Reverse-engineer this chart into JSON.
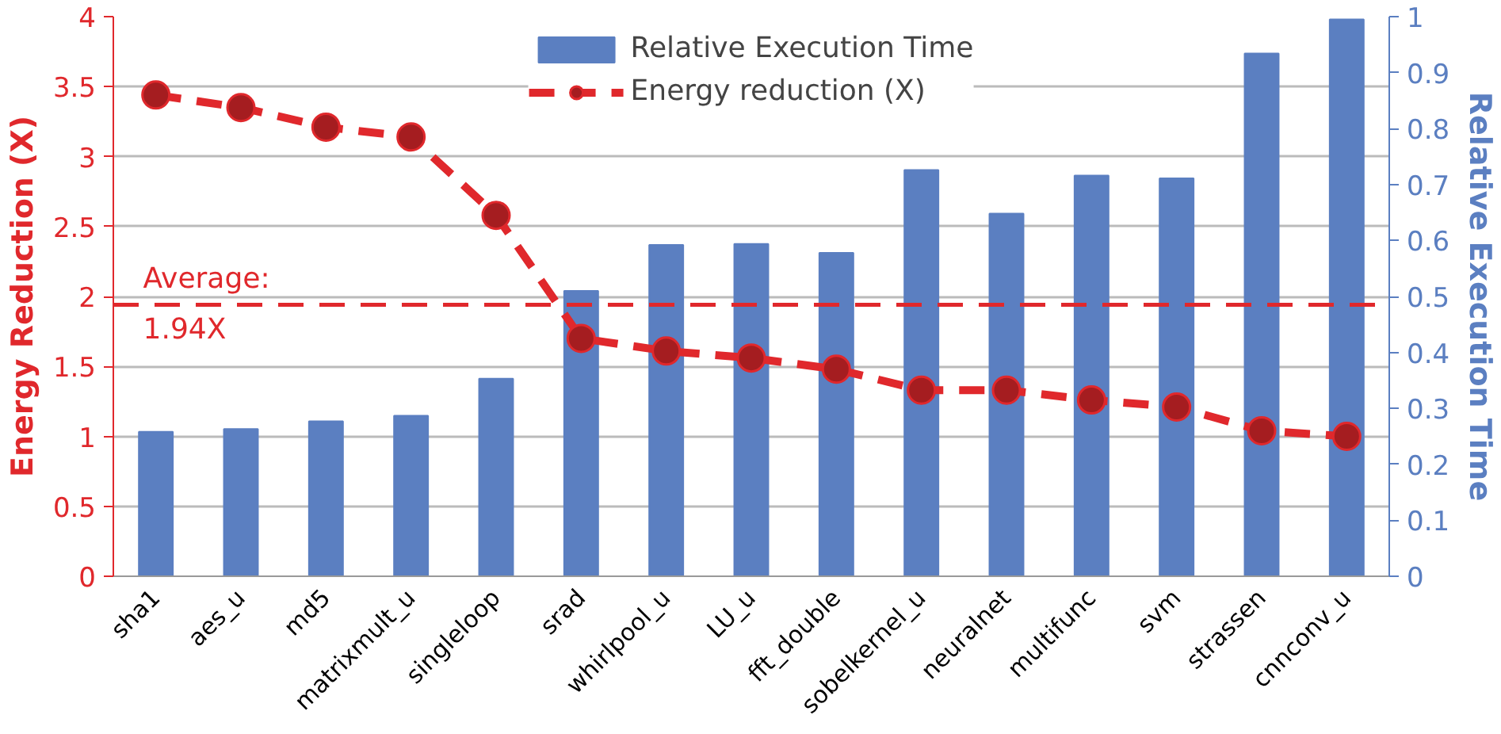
{
  "chart_data": {
    "type": "bar",
    "categories": [
      "sha1",
      "aes_u",
      "md5",
      "matrixmult_u",
      "singleloop",
      "srad",
      "whirlpool_u",
      "LU_u",
      "fft_double",
      "sobelkernel_u",
      "neuralnet",
      "multifunc",
      "svm",
      "strassen",
      "cnnconv_u"
    ],
    "series": [
      {
        "name": "Relative Execution Time",
        "axis": "y2",
        "color": "#5b7fc1",
        "values": [
          0.258,
          0.263,
          0.277,
          0.287,
          0.353,
          0.51,
          0.592,
          0.594,
          0.578,
          0.726,
          0.648,
          0.716,
          0.711,
          0.934,
          0.995
        ]
      },
      {
        "name": "Energy reduction (X)",
        "type": "line",
        "color": "#e0282c",
        "marker": "circle",
        "line_style": "dashed",
        "values": [
          3.44,
          3.35,
          3.21,
          3.14,
          2.58,
          1.7,
          1.61,
          1.56,
          1.48,
          1.33,
          1.33,
          1.26,
          1.21,
          1.04,
          1.0
        ]
      }
    ],
    "ylabel": "Energy Reduction (X)",
    "y2label": "Relative Execution Time",
    "ylim": [
      0,
      4
    ],
    "yticks": [
      0,
      0.5,
      1,
      1.5,
      2,
      2.5,
      3,
      3.5,
      4
    ],
    "y2lim": [
      0,
      1
    ],
    "y2ticks": [
      0,
      0.1,
      0.2,
      0.3,
      0.4,
      0.5,
      0.6,
      0.7,
      0.8,
      0.9,
      1
    ],
    "ref_lines": [
      {
        "axis": "y",
        "value": 1.94,
        "label": "Average:\n1.94X",
        "color": "#e0282c",
        "line_style": "dashed"
      }
    ],
    "grid": "y",
    "legend": "top"
  }
}
